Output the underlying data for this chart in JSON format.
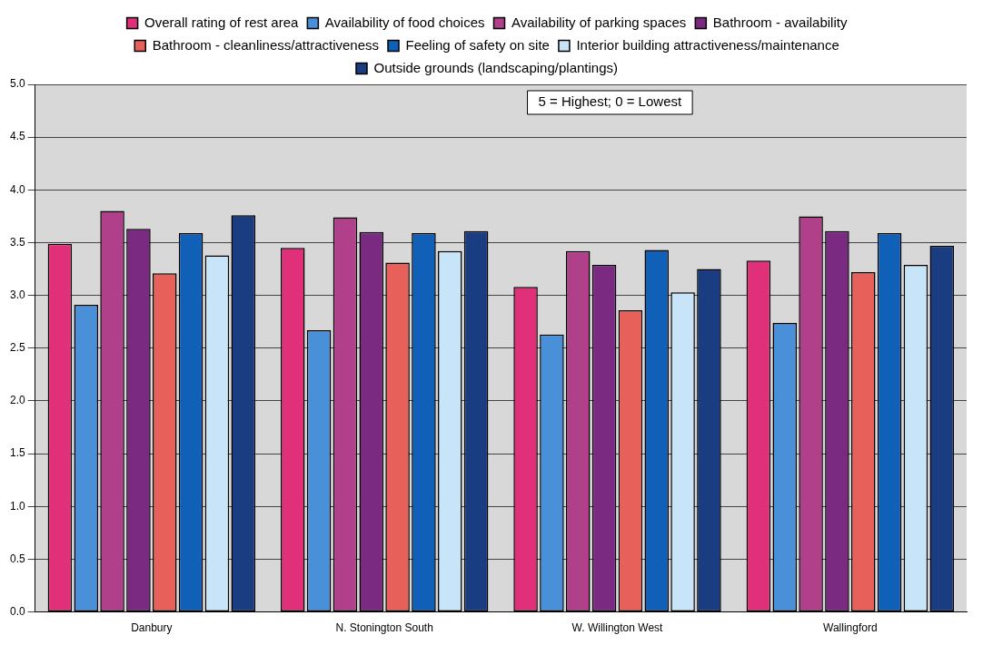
{
  "chart_data": {
    "type": "bar",
    "categories": [
      "Danbury",
      "N. Stonington South",
      "W. Willington West",
      "Wallingford"
    ],
    "series": [
      {
        "name": "Overall rating of rest area",
        "color": "#e0307a",
        "values": [
          3.49,
          3.45,
          3.08,
          3.33
        ]
      },
      {
        "name": "Availability of food choices",
        "color": "#4a90d8",
        "values": [
          2.91,
          2.67,
          2.63,
          2.74
        ]
      },
      {
        "name": "Availability of parking spaces",
        "color": "#b0408a",
        "values": [
          3.8,
          3.74,
          3.42,
          3.75
        ]
      },
      {
        "name": "Bathroom - availability",
        "color": "#7a2a80",
        "values": [
          3.63,
          3.6,
          3.29,
          3.61
        ]
      },
      {
        "name": "Bathroom - cleanliness/attractiveness",
        "color": "#e8605a",
        "values": [
          3.21,
          3.31,
          2.86,
          3.22
        ]
      },
      {
        "name": "Feeling of safety on site",
        "color": "#1060b8",
        "values": [
          3.59,
          3.59,
          3.43,
          3.59
        ]
      },
      {
        "name": "Interior building attractiveness/maintenance",
        "color": "#c8e4f8",
        "values": [
          3.38,
          3.42,
          3.03,
          3.29
        ]
      },
      {
        "name": "Outside grounds (landscaping/plantings)",
        "color": "#1a3c80",
        "values": [
          3.76,
          3.61,
          3.25,
          3.47
        ]
      }
    ],
    "ylim": [
      0,
      5
    ],
    "yticks": [
      {
        "value": 0,
        "label": "0.0"
      },
      {
        "value": 0.5,
        "label": "0.5"
      },
      {
        "value": 1,
        "label": "1.0"
      },
      {
        "value": 1.5,
        "label": "1.5"
      },
      {
        "value": 2,
        "label": "2.0"
      },
      {
        "value": 2.5,
        "label": "2.5"
      },
      {
        "value": 3,
        "label": "3.0"
      },
      {
        "value": 3.5,
        "label": "3.5"
      },
      {
        "value": 4,
        "label": "4.0"
      },
      {
        "value": 4.5,
        "label": "4.5"
      },
      {
        "value": 5,
        "label": "5.0"
      }
    ],
    "grid": "y",
    "legend": "top",
    "annotations": [
      "5 = Highest; 0 = Lowest"
    ]
  }
}
